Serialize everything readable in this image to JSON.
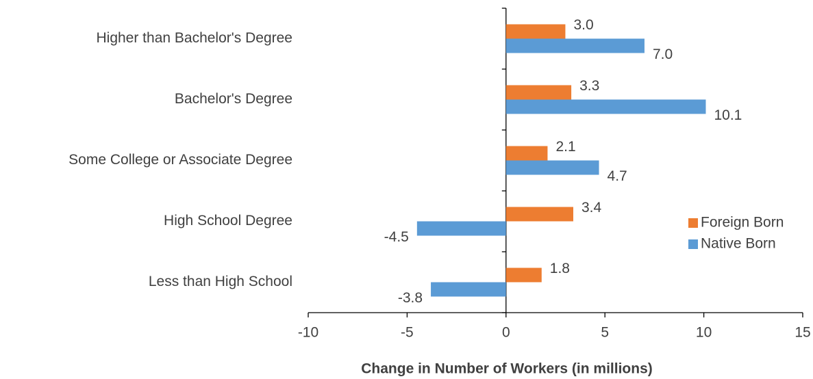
{
  "chart_data": {
    "type": "hbar",
    "xlabel": "Change in Number of Workers (in millions)",
    "categories": [
      "Higher than Bachelor's Degree",
      "Bachelor's Degree",
      "Some College or Associate Degree",
      "High School Degree",
      "Less than High School"
    ],
    "series": [
      {
        "name": "Foreign Born",
        "color": "#ED7D31",
        "values": [
          3.0,
          3.3,
          2.1,
          3.4,
          1.8
        ],
        "value_labels": [
          "3.0",
          "3.3",
          "2.1",
          "3.4",
          "1.8"
        ]
      },
      {
        "name": "Native Born",
        "color": "#5B9BD5",
        "values": [
          7.0,
          10.1,
          4.7,
          -4.5,
          -3.8
        ],
        "value_labels": [
          "7.0",
          "10.1",
          "4.7",
          "-4.5",
          "-3.8"
        ]
      }
    ],
    "xlim": [
      -10,
      15
    ],
    "xticks": [
      -10,
      -5,
      0,
      5,
      10,
      15
    ],
    "legend": "right",
    "grid": false
  }
}
